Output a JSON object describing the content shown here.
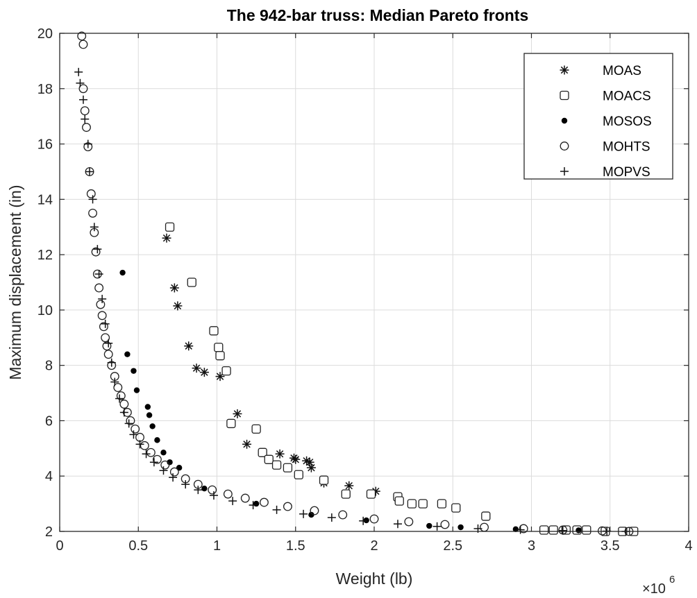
{
  "chart_data": {
    "type": "scatter",
    "title": "The 942-bar truss: Median Pareto fronts",
    "xlabel": "Weight (lb)",
    "ylabel": "Maximum displacement (in)",
    "x_multiplier_label": "×10",
    "x_multiplier_exponent": "6",
    "xlim": [
      0,
      4
    ],
    "ylim": [
      2,
      20
    ],
    "xticks": [
      "0",
      "0.5",
      "1",
      "1.5",
      "2",
      "2.5",
      "3",
      "3.5",
      "4"
    ],
    "yticks": [
      "2",
      "4",
      "6",
      "8",
      "10",
      "12",
      "14",
      "16",
      "18",
      "20"
    ],
    "grid": true,
    "legend_position": "top-right",
    "series": [
      {
        "name": "MOAS",
        "marker": "asterisk",
        "x": [
          0.68,
          0.73,
          0.75,
          0.82,
          0.87,
          0.92,
          1.02,
          1.13,
          1.19,
          1.4,
          1.49,
          1.5,
          1.57,
          1.59,
          1.6,
          1.68,
          1.84,
          2.01
        ],
        "y": [
          12.6,
          10.8,
          10.15,
          8.7,
          7.9,
          7.75,
          7.6,
          6.25,
          5.15,
          4.8,
          4.65,
          4.6,
          4.55,
          4.5,
          4.3,
          3.75,
          3.65,
          3.45
        ]
      },
      {
        "name": "MOACS",
        "marker": "square",
        "x": [
          0.7,
          0.84,
          0.98,
          1.01,
          1.02,
          1.06,
          1.09,
          1.25,
          1.29,
          1.33,
          1.38,
          1.45,
          1.52,
          1.68,
          1.82,
          1.98,
          2.15,
          2.16,
          2.24,
          2.31,
          2.43,
          2.52,
          2.71,
          3.08,
          3.14,
          3.22,
          3.29,
          3.35,
          3.47,
          3.58,
          3.65
        ],
        "y": [
          13.0,
          11.0,
          9.25,
          8.65,
          8.35,
          7.8,
          5.9,
          5.7,
          4.85,
          4.6,
          4.4,
          4.3,
          4.05,
          3.85,
          3.35,
          3.35,
          3.25,
          3.1,
          3.0,
          3.0,
          3.0,
          2.85,
          2.55,
          2.05,
          2.05,
          2.05,
          2.05,
          2.05,
          2.0,
          2.0,
          2.0
        ]
      },
      {
        "name": "MOSOS",
        "marker": "dot",
        "x": [
          0.4,
          0.43,
          0.47,
          0.49,
          0.56,
          0.57,
          0.59,
          0.62,
          0.66,
          0.7,
          0.76,
          0.92,
          1.25,
          1.6,
          1.95,
          2.35,
          2.55,
          2.9,
          3.3
        ],
        "y": [
          11.35,
          8.4,
          7.8,
          7.1,
          6.5,
          6.2,
          5.8,
          5.3,
          4.85,
          4.5,
          4.3,
          3.55,
          3.0,
          2.6,
          2.4,
          2.2,
          2.15,
          2.08,
          2.04
        ]
      },
      {
        "name": "MOHTS",
        "marker": "circle",
        "x": [
          0.14,
          0.15,
          0.15,
          0.16,
          0.17,
          0.18,
          0.19,
          0.2,
          0.21,
          0.22,
          0.23,
          0.24,
          0.25,
          0.26,
          0.27,
          0.28,
          0.29,
          0.3,
          0.31,
          0.33,
          0.35,
          0.37,
          0.39,
          0.41,
          0.43,
          0.45,
          0.48,
          0.51,
          0.54,
          0.58,
          0.62,
          0.67,
          0.73,
          0.8,
          0.88,
          0.97,
          1.07,
          1.18,
          1.3,
          1.45,
          1.62,
          1.8,
          2.0,
          2.22,
          2.45,
          2.7,
          2.95,
          3.2,
          3.45,
          3.62
        ],
        "y": [
          19.9,
          19.6,
          18.0,
          17.2,
          16.6,
          15.9,
          15.0,
          14.2,
          13.5,
          12.8,
          12.1,
          11.3,
          10.8,
          10.2,
          9.8,
          9.4,
          9.0,
          8.7,
          8.4,
          8.0,
          7.6,
          7.2,
          6.9,
          6.6,
          6.3,
          6.0,
          5.7,
          5.4,
          5.1,
          4.85,
          4.6,
          4.4,
          4.15,
          3.9,
          3.7,
          3.5,
          3.35,
          3.2,
          3.05,
          2.9,
          2.75,
          2.6,
          2.45,
          2.35,
          2.25,
          2.15,
          2.1,
          2.05,
          2.02,
          2.0
        ]
      },
      {
        "name": "MOPVS",
        "marker": "plus",
        "x": [
          0.12,
          0.13,
          0.15,
          0.16,
          0.18,
          0.19,
          0.21,
          0.22,
          0.24,
          0.25,
          0.27,
          0.29,
          0.31,
          0.33,
          0.35,
          0.38,
          0.41,
          0.44,
          0.47,
          0.51,
          0.55,
          0.6,
          0.66,
          0.72,
          0.8,
          0.88,
          0.98,
          1.1,
          1.23,
          1.38,
          1.55,
          1.73,
          1.93,
          2.15,
          2.4,
          2.66,
          2.93,
          3.2,
          3.48,
          3.6
        ],
        "y": [
          18.6,
          18.2,
          17.6,
          16.9,
          16.0,
          15.0,
          14.0,
          13.0,
          12.2,
          11.3,
          10.4,
          9.5,
          8.8,
          8.1,
          7.4,
          6.8,
          6.3,
          5.9,
          5.5,
          5.15,
          4.8,
          4.5,
          4.2,
          3.95,
          3.7,
          3.5,
          3.3,
          3.1,
          2.95,
          2.78,
          2.63,
          2.5,
          2.38,
          2.27,
          2.18,
          2.1,
          2.06,
          2.03,
          2.01,
          2.0
        ]
      }
    ]
  }
}
